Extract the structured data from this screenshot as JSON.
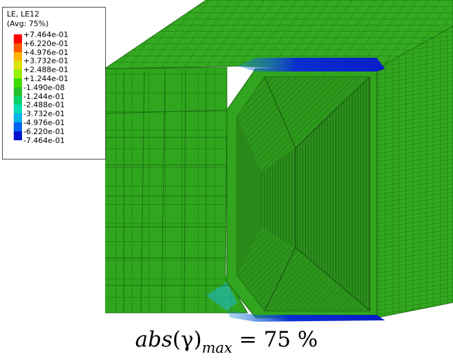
{
  "legend": {
    "title": "LE, LE12",
    "subtitle": "(Avg: 75%)",
    "entries": [
      {
        "label": "+7.464e-01",
        "color": "#ff0000"
      },
      {
        "label": "+6.220e-01",
        "color": "#ff5a00"
      },
      {
        "label": "+4.976e-01",
        "color": "#ffb400"
      },
      {
        "label": "+3.732e-01",
        "color": "#dde400"
      },
      {
        "label": "+2.488e-01",
        "color": "#96ee00"
      },
      {
        "label": "+1.244e-01",
        "color": "#40dc00"
      },
      {
        "label": "-1.490e-08",
        "color": "#22c22a"
      },
      {
        "label": "-1.244e-01",
        "color": "#00d26e"
      },
      {
        "label": "-2.488e-01",
        "color": "#00dcb4"
      },
      {
        "label": "-3.732e-01",
        "color": "#00b4e6"
      },
      {
        "label": "-4.976e-01",
        "color": "#0064f0"
      },
      {
        "label": "-6.220e-01",
        "color": "#0014d2"
      },
      {
        "label": "-7.464e-01",
        "color": "#0000a8"
      }
    ]
  },
  "caption": {
    "func": "abs",
    "var": "(γ)",
    "sub": "max",
    "rest": " = 75 %"
  },
  "colors": {
    "mesh_green": "#2ea51c",
    "mesh_dark": "#1f8a12",
    "inner_dark": "#226e15",
    "compressive_blue": "#0a1ec8"
  }
}
